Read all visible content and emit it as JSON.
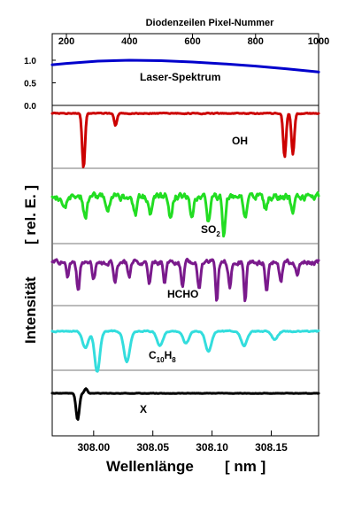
{
  "chart_data": {
    "type": "line",
    "top_axis": {
      "label": "Diodenzeilen Pixel-Nummer",
      "ticks": [
        "200",
        "400",
        "600",
        "800",
        "1000"
      ],
      "tick_values": [
        200,
        400,
        600,
        800,
        1000
      ],
      "range": [
        155,
        1000
      ]
    },
    "bottom_axis": {
      "label": "Wellenlänge",
      "unit": "[ nm ]",
      "ticks": [
        "308.00",
        "308.05",
        "308.10",
        "308.15"
      ],
      "tick_values": [
        308.0,
        308.05,
        308.1,
        308.15
      ],
      "range": [
        307.965,
        308.19
      ]
    },
    "y_axis": {
      "label": "Intensität",
      "unit": "[ rel. E. ]",
      "top_panel_ticks": [
        "1.0",
        "0.5",
        "0.0"
      ],
      "top_panel_tick_values": [
        1.0,
        0.5,
        0.0
      ]
    },
    "grid": false,
    "series": [
      {
        "name": "Laser-Spektrum",
        "name_parts": [
          {
            "text": "Laser-Spektrum",
            "sub": false
          }
        ],
        "color": "#0000cc",
        "axis": "pixel",
        "x": [
          155,
          200,
          300,
          400,
          500,
          600,
          700,
          800,
          900,
          1000
        ],
        "y": [
          0.9,
          0.93,
          0.98,
          1.0,
          0.99,
          0.96,
          0.92,
          0.87,
          0.81,
          0.74
        ]
      },
      {
        "name": "OH",
        "name_parts": [
          {
            "text": "OH",
            "sub": false
          }
        ],
        "color": "#cc0000",
        "lines": [
          {
            "x": 307.9915,
            "depth": 1.0,
            "width": 0.0012
          },
          {
            "x": 308.0185,
            "depth": 0.22,
            "width": 0.0012
          },
          {
            "x": 308.1613,
            "depth": 0.8,
            "width": 0.0012
          },
          {
            "x": 308.1683,
            "depth": 0.75,
            "width": 0.0012
          }
        ]
      },
      {
        "name": "SO2",
        "name_parts": [
          {
            "text": "SO",
            "sub": false
          },
          {
            "text": "2",
            "sub": true
          }
        ],
        "color": "#22dd22",
        "lines": [
          {
            "x": 307.975,
            "depth": 0.25,
            "width": 0.002
          },
          {
            "x": 307.993,
            "depth": 0.5,
            "width": 0.0015
          },
          {
            "x": 308.012,
            "depth": 0.35,
            "width": 0.0015
          },
          {
            "x": 308.035,
            "depth": 0.45,
            "width": 0.0015
          },
          {
            "x": 308.048,
            "depth": 0.4,
            "width": 0.0015
          },
          {
            "x": 308.065,
            "depth": 0.55,
            "width": 0.0015
          },
          {
            "x": 308.083,
            "depth": 0.45,
            "width": 0.0015
          },
          {
            "x": 308.097,
            "depth": 0.6,
            "width": 0.0015
          },
          {
            "x": 308.11,
            "depth": 1.0,
            "width": 0.0012
          },
          {
            "x": 308.128,
            "depth": 0.4,
            "width": 0.0015
          },
          {
            "x": 308.145,
            "depth": 0.3,
            "width": 0.0015
          },
          {
            "x": 308.168,
            "depth": 0.35,
            "width": 0.0015
          }
        ],
        "wiggle": 0.35
      },
      {
        "name": "HCHO",
        "name_parts": [
          {
            "text": "HCHO",
            "sub": false
          }
        ],
        "color": "#7a1a8c",
        "lines": [
          {
            "x": 307.978,
            "depth": 0.35,
            "width": 0.0012
          },
          {
            "x": 307.987,
            "depth": 0.7,
            "width": 0.0012
          },
          {
            "x": 308.0,
            "depth": 0.4,
            "width": 0.0012
          },
          {
            "x": 308.018,
            "depth": 0.45,
            "width": 0.0012
          },
          {
            "x": 308.03,
            "depth": 0.35,
            "width": 0.0012
          },
          {
            "x": 308.047,
            "depth": 0.5,
            "width": 0.0012
          },
          {
            "x": 308.06,
            "depth": 0.55,
            "width": 0.0012
          },
          {
            "x": 308.075,
            "depth": 0.6,
            "width": 0.0012
          },
          {
            "x": 308.089,
            "depth": 0.7,
            "width": 0.0012
          },
          {
            "x": 308.104,
            "depth": 1.0,
            "width": 0.001
          },
          {
            "x": 308.115,
            "depth": 0.6,
            "width": 0.0012
          },
          {
            "x": 308.128,
            "depth": 0.95,
            "width": 0.001
          },
          {
            "x": 308.146,
            "depth": 0.7,
            "width": 0.0012
          },
          {
            "x": 308.158,
            "depth": 0.5,
            "width": 0.0012
          },
          {
            "x": 308.172,
            "depth": 0.35,
            "width": 0.0012
          }
        ],
        "wiggle": 0.25
      },
      {
        "name": "C10H8",
        "name_parts": [
          {
            "text": "C",
            "sub": false
          },
          {
            "text": "10",
            "sub": true
          },
          {
            "text": "H",
            "sub": false
          },
          {
            "text": "8",
            "sub": true
          }
        ],
        "color": "#33dddd",
        "lines": [
          {
            "x": 307.993,
            "depth": 0.4,
            "width": 0.0025
          },
          {
            "x": 308.003,
            "depth": 1.0,
            "width": 0.0022
          },
          {
            "x": 308.028,
            "depth": 0.75,
            "width": 0.0025
          },
          {
            "x": 308.056,
            "depth": 0.35,
            "width": 0.0025
          },
          {
            "x": 308.078,
            "depth": 0.3,
            "width": 0.0025
          },
          {
            "x": 308.097,
            "depth": 0.5,
            "width": 0.0025
          },
          {
            "x": 308.127,
            "depth": 0.35,
            "width": 0.0025
          },
          {
            "x": 308.153,
            "depth": 0.2,
            "width": 0.0025
          }
        ]
      },
      {
        "name": "X",
        "name_parts": [
          {
            "text": "X",
            "sub": false
          }
        ],
        "color": "#000000",
        "lines": [
          {
            "x": 307.9865,
            "depth": 1.0,
            "width": 0.0014
          },
          {
            "x": 307.9935,
            "depth": -0.18,
            "width": 0.0012
          }
        ]
      }
    ]
  }
}
